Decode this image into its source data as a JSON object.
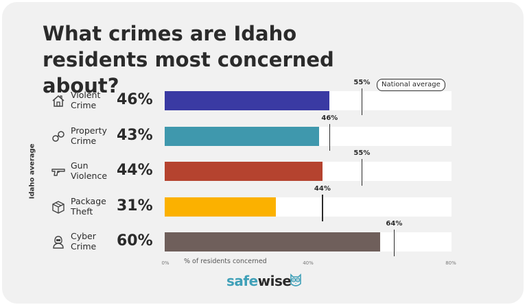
{
  "title_lines": [
    "What crimes are Idaho",
    "residents most concerned about?"
  ],
  "brand": {
    "part1": "safe",
    "part2": "wise",
    "logo": "owl-icon"
  },
  "colors": {
    "background": "#f1f1f1",
    "track": "#ffffff",
    "marker": "#2b2b2b",
    "brand": "#3fa0b8"
  },
  "chart_data": {
    "type": "bar",
    "orientation": "horizontal",
    "ylabel": "Idaho average",
    "xlabel": "% of residents concerned",
    "xlim": [
      0,
      80
    ],
    "ticks": [
      "0%",
      "40%",
      "80%"
    ],
    "legend": "National average",
    "categories": [
      {
        "lines": [
          "Violent",
          "Crime"
        ],
        "icon": "house-icon",
        "value": 46,
        "value_label": "46%",
        "color": "#3a3aa3",
        "national": 55,
        "national_label": "55%"
      },
      {
        "lines": [
          "Property",
          "Crime"
        ],
        "icon": "handcuffs-icon",
        "value": 43,
        "value_label": "43%",
        "color": "#3f98ad",
        "national": 46,
        "national_label": "46%"
      },
      {
        "lines": [
          "Gun",
          "Violence"
        ],
        "icon": "gun-icon",
        "value": 44,
        "value_label": "44%",
        "color": "#b5432f",
        "national": 55,
        "national_label": "55%"
      },
      {
        "lines": [
          "Package",
          "Theft"
        ],
        "icon": "package-icon",
        "value": 31,
        "value_label": "31%",
        "color": "#fbb100",
        "national": 44,
        "national_label": "44%"
      },
      {
        "lines": [
          "Cyber",
          "Crime"
        ],
        "icon": "hacker-icon",
        "value": 60,
        "value_label": "60%",
        "color": "#6f5f5b",
        "national": 64,
        "national_label": "64%"
      }
    ]
  }
}
